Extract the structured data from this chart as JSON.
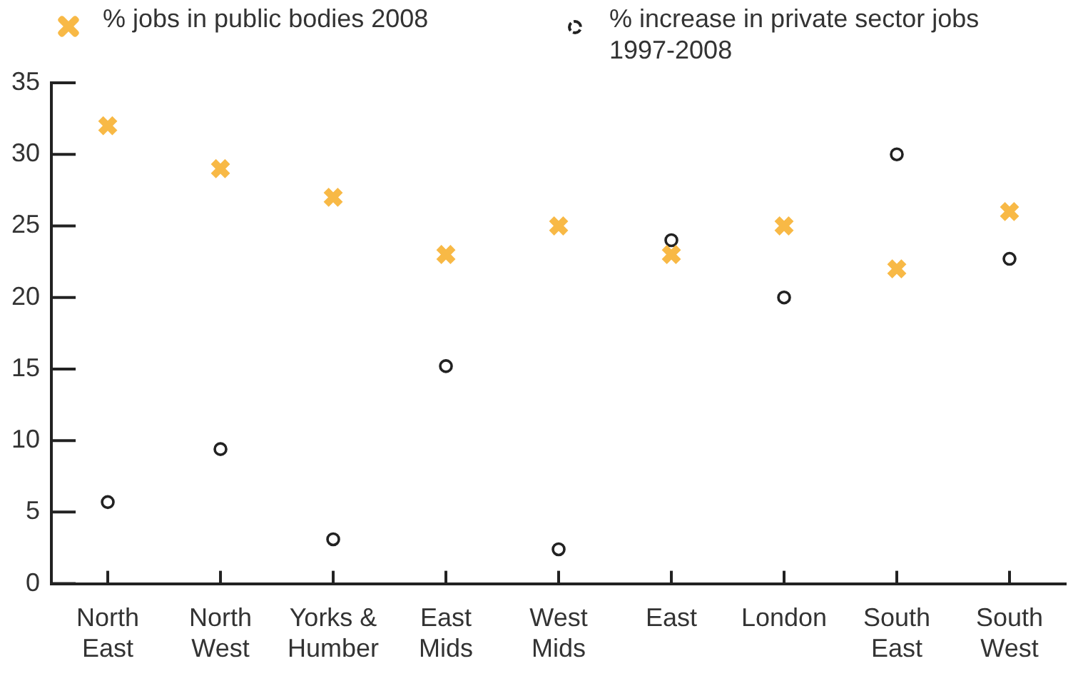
{
  "chart_data": {
    "type": "scatter",
    "categories": [
      "North East",
      "North West",
      "Yorks & Humber",
      "East Mids",
      "West Mids",
      "East",
      "London",
      "South East",
      "South West"
    ],
    "series": [
      {
        "name": "% jobs in public bodies 2008",
        "color": "#f8b946",
        "marker": "cross",
        "values": [
          32,
          29,
          27,
          23,
          25,
          23,
          25,
          22,
          26
        ]
      },
      {
        "name": "% increase in private sector jobs 1997-2008",
        "color": "#222222",
        "marker": "circle",
        "values": [
          5.7,
          9.4,
          3.1,
          15.2,
          2.4,
          24,
          20,
          30,
          22.7
        ]
      }
    ],
    "ylim": [
      0,
      35
    ],
    "yticks": [
      0,
      5,
      10,
      15,
      20,
      25,
      30,
      35
    ],
    "grid": false,
    "legend": "top left"
  }
}
